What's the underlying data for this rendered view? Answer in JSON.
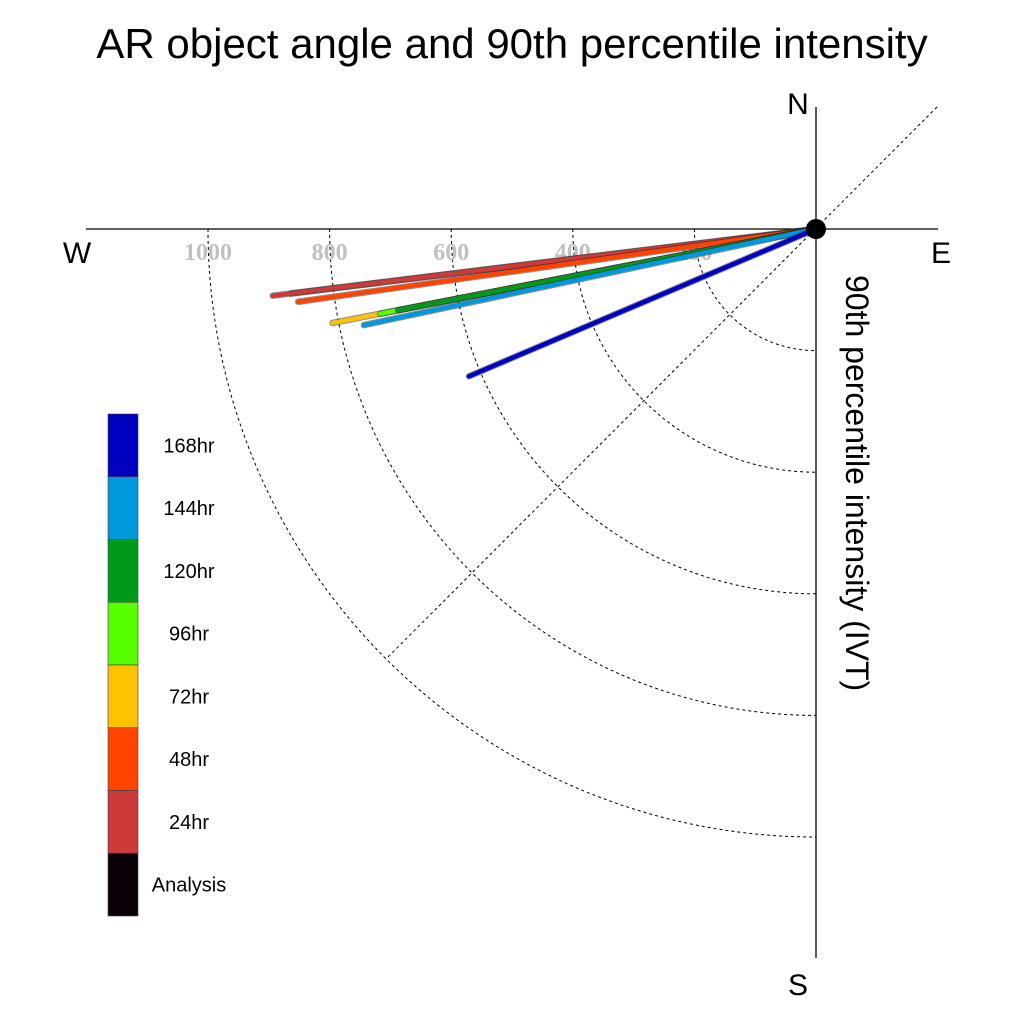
{
  "chart_data": {
    "type": "polar-vectors",
    "title": "AR object angle and 90th percentile intensity",
    "radial_label": "90th percentile intensity (IVT)",
    "compass": {
      "north": "N",
      "south": "S",
      "east": "E",
      "west": "W"
    },
    "rings": [
      200,
      400,
      600,
      800,
      1000
    ],
    "ring_labels": [
      "200",
      "400",
      "600",
      "800",
      "1000"
    ],
    "series": [
      {
        "name": "Analysis",
        "color": "#0a0008",
        "angle_deg": 263,
        "value": 870
      },
      {
        "name": "24hr",
        "color": "#cc3a3a",
        "angle_deg": 263,
        "value": 900
      },
      {
        "name": "48hr",
        "color": "#ff4400",
        "angle_deg": 262,
        "value": 860
      },
      {
        "name": "72hr",
        "color": "#ffc200",
        "angle_deg": 259,
        "value": 810
      },
      {
        "name": "96hr",
        "color": "#55ff00",
        "angle_deg": 259,
        "value": 730
      },
      {
        "name": "120hr",
        "color": "#009a1a",
        "angle_deg": 259,
        "value": 700
      },
      {
        "name": "144hr",
        "color": "#0098dd",
        "angle_deg": 258,
        "value": 760
      },
      {
        "name": "168hr",
        "color": "#0000c0",
        "angle_deg": 247,
        "value": 620
      }
    ]
  }
}
